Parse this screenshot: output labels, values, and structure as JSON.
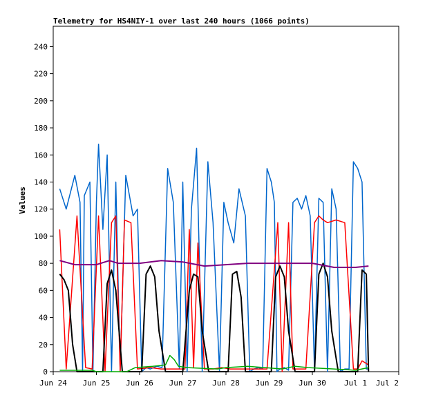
{
  "chart_data": {
    "type": "line",
    "title": "Telemetry for HS4NIY-1 over last 240 hours (1066 points)",
    "xlabel": "",
    "ylabel": "Values",
    "ylim": [
      0,
      255
    ],
    "xlim_days": [
      "Jun 24",
      "Jul 2"
    ],
    "y_ticks": [
      0,
      20,
      40,
      60,
      80,
      100,
      120,
      140,
      160,
      180,
      200,
      220,
      240
    ],
    "x_ticks": [
      "Jun 24",
      "Jun 25",
      "Jun 26",
      "Jun 27",
      "Jun 28",
      "Jun 29",
      "Jun 30",
      "Jul 1",
      "Jul 2"
    ],
    "grid": false,
    "legend": "none",
    "colors": {
      "series_blue": "#0066cc",
      "series_red": "#ff0000",
      "series_black": "#000000",
      "series_purple": "#800080",
      "series_green": "#00aa00"
    },
    "series": [
      {
        "color": "#0066cc",
        "x_day": [
          0.15,
          0.3,
          0.5,
          0.62,
          0.68,
          0.72,
          0.85,
          0.92,
          1.0,
          1.05,
          1.15,
          1.25,
          1.35,
          1.45,
          1.55,
          1.68,
          1.85,
          1.95,
          2.05,
          2.15,
          2.25,
          2.4,
          2.52,
          2.65,
          2.78,
          2.92,
          3.0,
          3.1,
          3.2,
          3.32,
          3.45,
          3.58,
          3.7,
          3.85,
          3.95,
          4.05,
          4.18,
          4.3,
          4.45,
          4.55,
          4.65,
          4.75,
          4.85,
          4.95,
          5.05,
          5.12,
          5.18,
          5.25,
          5.35,
          5.45,
          5.55,
          5.65,
          5.75,
          5.85,
          5.95,
          6.05,
          6.15,
          6.25,
          6.35,
          6.45,
          6.55,
          6.65,
          6.75,
          6.85,
          6.95,
          7.05,
          7.15,
          7.25,
          7.3
        ],
        "values": [
          135,
          120,
          145,
          125,
          0,
          130,
          140,
          0,
          125,
          168,
          105,
          160,
          0,
          140,
          0,
          145,
          115,
          120,
          0,
          3,
          2,
          4,
          3,
          150,
          125,
          2,
          140,
          0,
          120,
          165,
          0,
          155,
          110,
          0,
          125,
          110,
          95,
          135,
          115,
          0,
          2,
          3,
          2,
          150,
          140,
          125,
          0,
          2,
          3,
          1,
          125,
          128,
          120,
          130,
          115,
          0,
          128,
          125,
          0,
          135,
          120,
          0,
          2,
          2,
          155,
          150,
          140,
          2,
          2
        ]
      },
      {
        "color": "#ff0000",
        "x_day": [
          0.15,
          0.3,
          0.55,
          0.75,
          0.9,
          1.05,
          1.2,
          1.35,
          1.45,
          1.55,
          1.65,
          1.8,
          1.95,
          2.25,
          2.5,
          2.75,
          2.9,
          3.05,
          3.15,
          3.25,
          3.35,
          3.5,
          3.7,
          3.9,
          4.1,
          4.3,
          4.5,
          4.7,
          4.95,
          5.2,
          5.3,
          5.45,
          5.55,
          5.65,
          5.85,
          6.05,
          6.15,
          6.25,
          6.35,
          6.55,
          6.75,
          6.95,
          7.05,
          7.15,
          7.25,
          7.3
        ],
        "values": [
          105,
          2,
          115,
          3,
          2,
          115,
          0,
          110,
          115,
          0,
          112,
          110,
          2,
          3,
          2,
          2,
          2,
          2,
          105,
          3,
          95,
          2,
          2,
          3,
          2,
          2,
          2,
          2,
          2,
          110,
          0,
          110,
          2,
          2,
          2,
          110,
          115,
          112,
          110,
          112,
          110,
          2,
          2,
          8,
          6,
          5
        ]
      },
      {
        "color": "#000000",
        "x_day": [
          0.15,
          0.25,
          0.35,
          0.45,
          0.55,
          0.65,
          0.8,
          1.0,
          1.15,
          1.25,
          1.35,
          1.45,
          1.6,
          1.9,
          2.05,
          2.15,
          2.25,
          2.35,
          2.45,
          2.6,
          2.85,
          3.0,
          3.15,
          3.25,
          3.35,
          3.45,
          3.6,
          3.9,
          4.05,
          4.15,
          4.25,
          4.35,
          4.45,
          4.6,
          4.9,
          5.05,
          5.15,
          5.25,
          5.35,
          5.45,
          5.6,
          5.9,
          6.05,
          6.15,
          6.25,
          6.35,
          6.45,
          6.6,
          6.9,
          7.05,
          7.15,
          7.25,
          7.3
        ],
        "values": [
          72,
          68,
          60,
          20,
          0,
          0,
          0,
          0,
          0,
          65,
          75,
          60,
          0,
          0,
          0,
          72,
          78,
          70,
          30,
          0,
          0,
          0,
          60,
          72,
          70,
          30,
          0,
          0,
          0,
          72,
          74,
          55,
          0,
          0,
          0,
          0,
          70,
          78,
          70,
          30,
          0,
          0,
          0,
          72,
          80,
          70,
          30,
          0,
          0,
          0,
          75,
          72,
          0
        ]
      },
      {
        "color": "#800080",
        "x_day": [
          0.15,
          0.5,
          1.0,
          1.3,
          1.5,
          2.0,
          2.5,
          3.0,
          3.5,
          4.0,
          4.5,
          5.0,
          5.5,
          6.0,
          6.5,
          7.0,
          7.3
        ],
        "values": [
          82,
          79,
          79,
          82,
          80,
          80,
          82,
          81,
          78,
          79,
          80,
          80,
          80,
          80,
          77,
          77,
          78
        ]
      },
      {
        "color": "#00aa00",
        "x_day": [
          0.15,
          0.9,
          1.0,
          1.7,
          1.9,
          2.3,
          2.6,
          2.7,
          2.8,
          2.9,
          3.1,
          3.8,
          4.0,
          4.5,
          4.9,
          5.3,
          5.6,
          5.9,
          6.5,
          7.0,
          7.3
        ],
        "values": [
          1,
          1,
          0,
          0,
          3,
          4,
          5,
          12,
          9,
          4,
          3,
          2,
          3,
          4,
          3,
          2,
          4,
          3,
          2,
          1,
          3
        ]
      }
    ]
  }
}
